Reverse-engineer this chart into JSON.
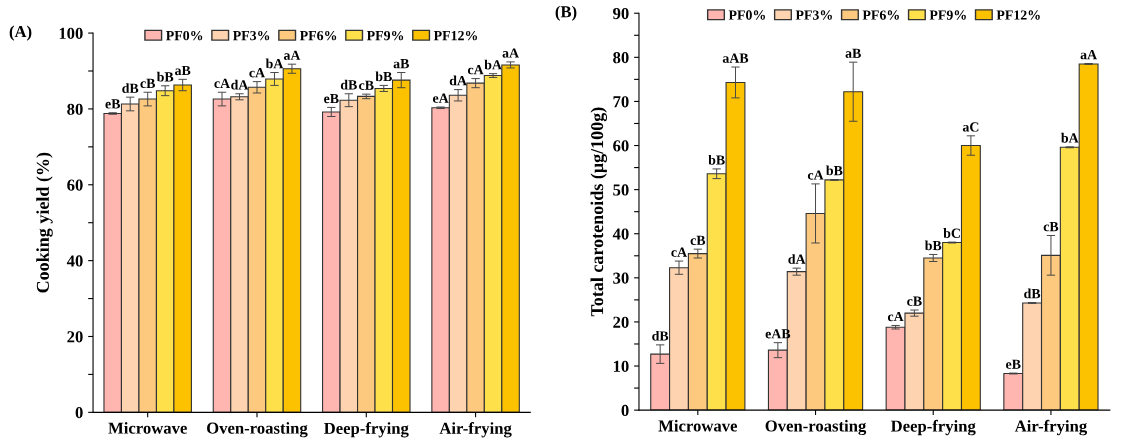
{
  "chart_data": [
    {
      "type": "bar",
      "title": "(A)",
      "ylabel": "Cooking yield (%)",
      "categories": [
        "Microwave",
        "Oven-roasting",
        "Deep-frying",
        "Air-frying"
      ],
      "ylim": [
        0,
        100
      ],
      "yticks": [
        0,
        {
          "value": 10,
          "label": null
        },
        20,
        {
          "value": 30,
          "label": null
        },
        40,
        {
          "value": 50,
          "label": null
        },
        60,
        {
          "value": 70,
          "label": null
        },
        80,
        {
          "value": 90,
          "label": null
        },
        100
      ],
      "legend": "top",
      "grid": false,
      "series": [
        {
          "name": "PF0%",
          "color": "#ffb6b0",
          "values": [
            78.8,
            82.6,
            79.2,
            80.3
          ],
          "errors": [
            0.2,
            1.8,
            1.2,
            0.2
          ],
          "value_labels": [
            "eB",
            "cA",
            "eB",
            "eA"
          ]
        },
        {
          "name": "PF3%",
          "color": "#fdd3b0",
          "values": [
            81.3,
            83.2,
            82.3,
            83.6
          ],
          "errors": [
            1.8,
            0.8,
            1.7,
            1.5
          ],
          "value_labels": [
            "dB",
            "dA",
            "dB",
            "dA"
          ]
        },
        {
          "name": "PF6%",
          "color": "#fcc97e",
          "values": [
            82.6,
            85.7,
            83.3,
            86.8
          ],
          "errors": [
            1.8,
            1.5,
            0.6,
            1.2
          ],
          "value_labels": [
            "cB",
            "cA",
            "cB",
            "cA"
          ]
        },
        {
          "name": "PF9%",
          "color": "#fde04a",
          "values": [
            84.8,
            87.9,
            85.4,
            88.8
          ],
          "errors": [
            1.3,
            1.7,
            0.8,
            0.5
          ],
          "value_labels": [
            "bB",
            "bA",
            "bB",
            "bA"
          ]
        },
        {
          "name": "PF12%",
          "color": "#fcc200",
          "values": [
            86.3,
            90.6,
            87.6,
            91.6
          ],
          "errors": [
            1.5,
            1.2,
            2.0,
            0.8
          ],
          "value_labels": [
            "aB",
            "aA",
            "aB",
            "aA"
          ]
        }
      ]
    },
    {
      "type": "bar",
      "title": "(B)",
      "ylabel": "Total carotenoids (μg/100g)",
      "categories": [
        "Microwave",
        "Oven-roasting",
        "Deep-frying",
        "Air-frying"
      ],
      "ylim": [
        0,
        90
      ],
      "yticks": [
        0,
        {
          "value": 5,
          "label": null
        },
        10,
        {
          "value": 15,
          "label": null
        },
        20,
        {
          "value": 25,
          "label": null
        },
        30,
        {
          "value": 35,
          "label": null
        },
        40,
        {
          "value": 45,
          "label": null
        },
        50,
        {
          "value": 55,
          "label": null
        },
        60,
        {
          "value": 65,
          "label": null
        },
        70,
        {
          "value": 75,
          "label": null
        },
        80,
        {
          "value": 85,
          "label": null
        },
        90
      ],
      "legend": "top",
      "grid": false,
      "series": [
        {
          "name": "PF0%",
          "color": "#ffb6b0",
          "values": [
            12.7,
            13.6,
            18.8,
            8.3
          ],
          "errors": [
            2.1,
            1.7,
            0.4,
            0.1
          ],
          "value_labels": [
            "dB",
            "eAB",
            "cA",
            "eB"
          ]
        },
        {
          "name": "PF3%",
          "color": "#fdd3b0",
          "values": [
            32.3,
            31.4,
            22.0,
            24.3
          ],
          "errors": [
            1.5,
            0.8,
            0.7,
            0.1
          ],
          "value_labels": [
            "cA",
            "dA",
            "cB",
            "dB"
          ]
        },
        {
          "name": "PF6%",
          "color": "#fcc97e",
          "values": [
            35.5,
            44.6,
            34.5,
            35.1
          ],
          "errors": [
            1.0,
            6.7,
            0.8,
            4.5
          ],
          "value_labels": [
            "cB",
            "cA",
            "bB",
            "cB"
          ]
        },
        {
          "name": "PF9%",
          "color": "#fde04a",
          "values": [
            53.6,
            52.2,
            38.0,
            59.6
          ],
          "errors": [
            1.1,
            0.1,
            0.1,
            0.1
          ],
          "value_labels": [
            "bB",
            "bB",
            "bC",
            "bA"
          ]
        },
        {
          "name": "PF12%",
          "color": "#fcc200",
          "values": [
            74.3,
            72.2,
            60.0,
            78.5
          ],
          "errors": [
            3.5,
            6.7,
            2.2,
            0.1
          ],
          "value_labels": [
            "aAB",
            "aB",
            "aC",
            "aA"
          ]
        }
      ]
    }
  ]
}
